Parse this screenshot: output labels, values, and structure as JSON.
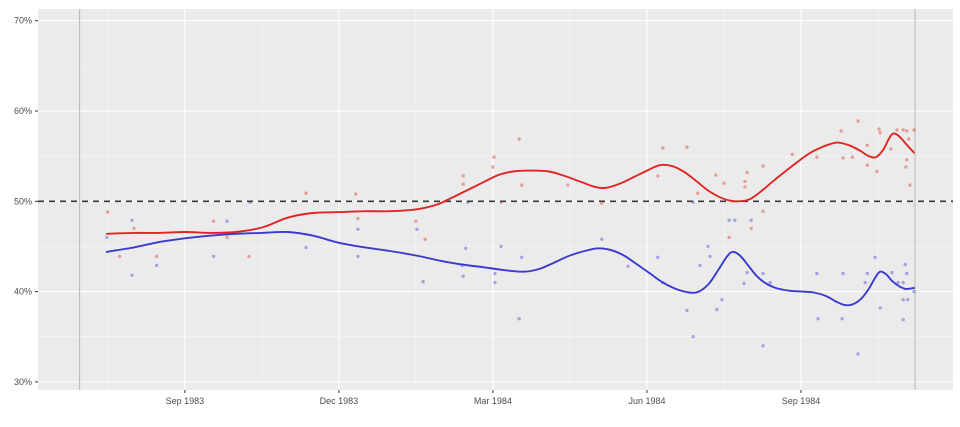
{
  "chart_data": {
    "type": "scatter",
    "title": "",
    "xlabel": "",
    "ylabel": "",
    "x_axis": {
      "unit": "months since Sep 1983",
      "range": [
        -2.86,
        14.96
      ],
      "ticks": [
        0,
        3,
        6,
        9,
        12
      ],
      "tick_labels": [
        "Sep 1983",
        "Dec 1983",
        "Mar 1984",
        "Jun 1984",
        "Sep 1984"
      ],
      "minor_ticks": [
        -1.5,
        1.5,
        4.5,
        7.5,
        10.5,
        13.5
      ]
    },
    "y_axis": {
      "unit": "percent",
      "range": [
        29.1,
        71.3
      ],
      "ticks": [
        30,
        40,
        50,
        60,
        70
      ],
      "tick_labels": [
        "30%",
        "40%",
        "50%",
        "60%",
        "70%"
      ],
      "minor_ticks": [
        35,
        45,
        55,
        65
      ]
    },
    "reference_lines": {
      "dashed_horizontal": 50,
      "gray_verticals": [
        -2.05,
        14.22
      ]
    },
    "colors": {
      "red": "#e02524",
      "blue": "#3a3ad0",
      "panel_bg": "#ebebeb",
      "grid_major": "#ffffff",
      "grid_minor": "rgba(255,255,255,0.6)",
      "ref_gray": "#bcbcbc",
      "dashed": "#3a3a3a",
      "axis_text": "#4d4d4d"
    },
    "series": [
      {
        "name": "red",
        "color_key": "red",
        "line": [
          [
            -1.52,
            46.4
          ],
          [
            -0.99,
            46.5
          ],
          [
            -0.49,
            46.5
          ],
          [
            0,
            46.6
          ],
          [
            0.51,
            46.5
          ],
          [
            0.99,
            46.6
          ],
          [
            1.5,
            47.1
          ],
          [
            2.01,
            48.2
          ],
          [
            2.49,
            48.7
          ],
          [
            3,
            48.8
          ],
          [
            3.51,
            48.9
          ],
          [
            3.99,
            48.9
          ],
          [
            4.5,
            49.1
          ],
          [
            4.89,
            49.6
          ],
          [
            5.2,
            50.4
          ],
          [
            5.49,
            51.2
          ],
          [
            5.81,
            52.1
          ],
          [
            6.1,
            52.9
          ],
          [
            6.39,
            53.3
          ],
          [
            6.7,
            53.4
          ],
          [
            7.09,
            53.3
          ],
          [
            7.4,
            52.8
          ],
          [
            7.69,
            52.2
          ],
          [
            7.99,
            51.6
          ],
          [
            8.2,
            51.5
          ],
          [
            8.49,
            52.0
          ],
          [
            8.75,
            52.7
          ],
          [
            9.0,
            53.4
          ],
          [
            9.25,
            54.0
          ],
          [
            9.49,
            53.9
          ],
          [
            9.74,
            53.2
          ],
          [
            9.99,
            52.1
          ],
          [
            10.19,
            51.2
          ],
          [
            10.4,
            50.5
          ],
          [
            10.6,
            50.1
          ],
          [
            10.79,
            50.0
          ],
          [
            10.99,
            50.2
          ],
          [
            11.2,
            51.0
          ],
          [
            11.43,
            52.1
          ],
          [
            11.69,
            53.3
          ],
          [
            11.94,
            54.4
          ],
          [
            12.19,
            55.4
          ],
          [
            12.45,
            56.1
          ],
          [
            12.7,
            56.5
          ],
          [
            12.94,
            56.2
          ],
          [
            13.15,
            55.6
          ],
          [
            13.32,
            55.0
          ],
          [
            13.46,
            54.9
          ],
          [
            13.6,
            55.7
          ],
          [
            13.71,
            56.9
          ],
          [
            13.79,
            57.5
          ],
          [
            13.89,
            57.3
          ],
          [
            14.01,
            56.6
          ],
          [
            14.1,
            56.0
          ],
          [
            14.2,
            55.4
          ]
        ],
        "points": [
          [
            -1.5,
            48.8
          ],
          [
            -0.99,
            47.0
          ],
          [
            -1.27,
            43.9
          ],
          [
            -0.55,
            43.9
          ],
          [
            0.56,
            47.8
          ],
          [
            0.82,
            46.0
          ],
          [
            1.25,
            43.9
          ],
          [
            2.36,
            50.9
          ],
          [
            3.33,
            50.8
          ],
          [
            3.37,
            48.1
          ],
          [
            4.5,
            47.8
          ],
          [
            4.68,
            45.8
          ],
          [
            5.42,
            52.8
          ],
          [
            5.42,
            51.9
          ],
          [
            6.02,
            54.9
          ],
          [
            6.0,
            53.8
          ],
          [
            6.51,
            56.9
          ],
          [
            6.56,
            51.8
          ],
          [
            6.16,
            49.9
          ],
          [
            7.46,
            51.8
          ],
          [
            8.12,
            49.8
          ],
          [
            9.21,
            52.8
          ],
          [
            9.31,
            55.9
          ],
          [
            9.78,
            56.0
          ],
          [
            9.99,
            50.9
          ],
          [
            10.34,
            52.9
          ],
          [
            10.5,
            52.0
          ],
          [
            10.91,
            52.2
          ],
          [
            10.91,
            51.6
          ],
          [
            10.95,
            53.2
          ],
          [
            11.26,
            53.9
          ],
          [
            11.26,
            48.9
          ],
          [
            11.03,
            47.0
          ],
          [
            10.6,
            46.0
          ],
          [
            11.83,
            55.2
          ],
          [
            12.31,
            54.9
          ],
          [
            12.78,
            57.8
          ],
          [
            12.82,
            54.8
          ],
          [
            13.0,
            54.9
          ],
          [
            13.11,
            58.9
          ],
          [
            13.29,
            56.2
          ],
          [
            13.29,
            54.0
          ],
          [
            13.48,
            53.3
          ],
          [
            13.52,
            58.0
          ],
          [
            13.54,
            57.6
          ],
          [
            13.75,
            55.8
          ],
          [
            13.87,
            57.9
          ],
          [
            13.99,
            57.9
          ],
          [
            14.06,
            57.8
          ],
          [
            14.1,
            56.9
          ],
          [
            14.06,
            54.6
          ],
          [
            14.04,
            53.8
          ],
          [
            14.12,
            51.8
          ],
          [
            14.2,
            57.9
          ]
        ]
      },
      {
        "name": "blue",
        "color_key": "blue",
        "line": [
          [
            -1.52,
            44.4
          ],
          [
            -0.99,
            44.9
          ],
          [
            -0.49,
            45.5
          ],
          [
            0,
            45.9
          ],
          [
            0.51,
            46.2
          ],
          [
            0.99,
            46.4
          ],
          [
            1.5,
            46.5
          ],
          [
            2.01,
            46.6
          ],
          [
            2.49,
            46.2
          ],
          [
            3,
            45.4
          ],
          [
            3.51,
            44.9
          ],
          [
            3.99,
            44.5
          ],
          [
            4.5,
            44.0
          ],
          [
            4.99,
            43.4
          ],
          [
            5.4,
            43.0
          ],
          [
            5.81,
            42.7
          ],
          [
            6.19,
            42.4
          ],
          [
            6.6,
            42.2
          ],
          [
            6.9,
            42.5
          ],
          [
            7.19,
            43.2
          ],
          [
            7.5,
            44.0
          ],
          [
            7.79,
            44.5
          ],
          [
            8.05,
            44.8
          ],
          [
            8.3,
            44.6
          ],
          [
            8.55,
            44.0
          ],
          [
            8.81,
            43.0
          ],
          [
            9.06,
            42.0
          ],
          [
            9.31,
            41.0
          ],
          [
            9.56,
            40.3
          ],
          [
            9.82,
            39.9
          ],
          [
            10.01,
            40.0
          ],
          [
            10.21,
            40.9
          ],
          [
            10.4,
            42.5
          ],
          [
            10.56,
            43.9
          ],
          [
            10.67,
            44.4
          ],
          [
            10.81,
            44.0
          ],
          [
            10.97,
            42.9
          ],
          [
            11.14,
            41.7
          ],
          [
            11.32,
            40.9
          ],
          [
            11.51,
            40.4
          ],
          [
            11.77,
            40.1
          ],
          [
            12.02,
            40.0
          ],
          [
            12.25,
            39.9
          ],
          [
            12.49,
            39.5
          ],
          [
            12.68,
            38.9
          ],
          [
            12.86,
            38.5
          ],
          [
            13.01,
            38.6
          ],
          [
            13.17,
            39.2
          ],
          [
            13.32,
            40.3
          ],
          [
            13.44,
            41.5
          ],
          [
            13.54,
            42.2
          ],
          [
            13.66,
            41.9
          ],
          [
            13.77,
            41.2
          ],
          [
            13.91,
            40.6
          ],
          [
            14.04,
            40.3
          ],
          [
            14.2,
            40.4
          ]
        ],
        "points": [
          [
            -1.52,
            46.0
          ],
          [
            -1.03,
            47.9
          ],
          [
            -1.03,
            41.8
          ],
          [
            -0.55,
            42.9
          ],
          [
            0.56,
            43.9
          ],
          [
            0.82,
            47.8
          ],
          [
            1.27,
            49.9
          ],
          [
            2.36,
            44.9
          ],
          [
            3.37,
            46.9
          ],
          [
            3.37,
            43.9
          ],
          [
            4.52,
            46.9
          ],
          [
            4.64,
            41.1
          ],
          [
            5.47,
            44.8
          ],
          [
            5.4,
            42.9
          ],
          [
            5.42,
            41.7
          ],
          [
            5.51,
            49.9
          ],
          [
            6.04,
            42.0
          ],
          [
            6.04,
            41.0
          ],
          [
            6.16,
            45.0
          ],
          [
            6.51,
            37.0
          ],
          [
            6.56,
            43.8
          ],
          [
            8.12,
            45.8
          ],
          [
            8.63,
            42.8
          ],
          [
            9.21,
            43.8
          ],
          [
            9.31,
            41.0
          ],
          [
            9.78,
            37.9
          ],
          [
            9.9,
            49.9
          ],
          [
            9.9,
            35.0
          ],
          [
            10.03,
            42.9
          ],
          [
            10.19,
            45.0
          ],
          [
            10.23,
            43.9
          ],
          [
            10.36,
            38.0
          ],
          [
            10.46,
            39.1
          ],
          [
            10.6,
            47.9
          ],
          [
            10.71,
            47.9
          ],
          [
            11.03,
            47.9
          ],
          [
            10.95,
            42.1
          ],
          [
            10.89,
            40.9
          ],
          [
            11.26,
            42.0
          ],
          [
            11.4,
            41.0
          ],
          [
            11.26,
            34.0
          ],
          [
            12.31,
            42.0
          ],
          [
            12.33,
            37.0
          ],
          [
            12.82,
            42.0
          ],
          [
            12.8,
            37.0
          ],
          [
            13.11,
            33.1
          ],
          [
            13.29,
            42.0
          ],
          [
            13.25,
            41.0
          ],
          [
            13.44,
            43.8
          ],
          [
            13.54,
            38.2
          ],
          [
            13.77,
            42.1
          ],
          [
            13.89,
            41.0
          ],
          [
            13.99,
            41.0
          ],
          [
            14.03,
            43.0
          ],
          [
            14.06,
            42.0
          ],
          [
            13.99,
            36.9
          ],
          [
            13.99,
            39.1
          ],
          [
            14.08,
            39.1
          ],
          [
            14.2,
            40.0
          ]
        ]
      }
    ],
    "legend": {
      "visible": false,
      "entries": []
    },
    "grid": "on"
  }
}
